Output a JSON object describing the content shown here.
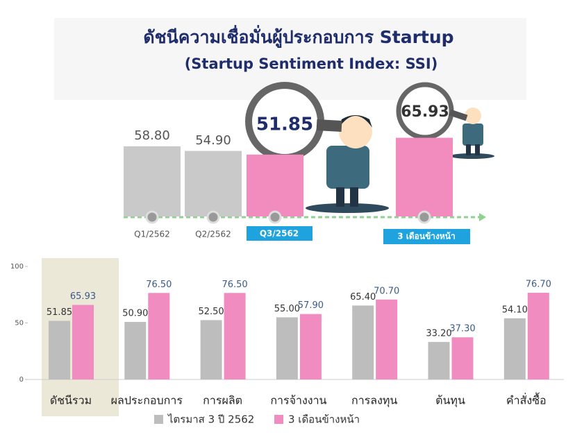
{
  "title": "ดัชนีความเชื่อมั่นผู้ประกอบการ Startup",
  "subtitle": "(Startup Sentiment Index: SSI)",
  "chart_data": [
    {
      "type": "bar",
      "categories": [
        "Q1/2562",
        "Q2/2562",
        "Q3/2562",
        "3 เดือนข้างหน้า"
      ],
      "values": [
        58.8,
        54.9,
        51.85,
        65.93
      ],
      "value_labels": [
        "58.80",
        "54.90",
        "51.85",
        "65.93"
      ],
      "colors": [
        "#c9c9c9",
        "#c9c9c9",
        "#f28cbf",
        "#f28cbf"
      ]
    },
    {
      "type": "grouped_bar",
      "categories": [
        "ดัชนีรวม",
        "ผลประกอบการ",
        "การผลิต",
        "การจ้างงาน",
        "การลงทุน",
        "ต้นทุน",
        "คำสั่งซื้อ"
      ],
      "series": [
        {
          "name": "ไตรมาส 3 ปี 2562",
          "color": "#bdbdbd",
          "values": [
            51.85,
            50.9,
            52.5,
            55,
            65.4,
            33.2,
            54.1
          ],
          "value_labels": [
            "51.85",
            "50.90",
            "52.50",
            "55.00",
            "65.40",
            "33.20",
            "54.10"
          ]
        },
        {
          "name": "3 เดือนข้างหน้า",
          "color": "#f08cc0",
          "values": [
            65.93,
            76.5,
            76.5,
            57.9,
            70.7,
            37.3,
            76.7
          ],
          "value_labels": [
            "65.93",
            "76.50",
            "76.50",
            "57.90",
            "70.70",
            "37.30",
            "76.70"
          ]
        }
      ],
      "ylim": [
        0,
        100
      ],
      "yticks": [
        0,
        50,
        100
      ],
      "grid": false
    }
  ]
}
